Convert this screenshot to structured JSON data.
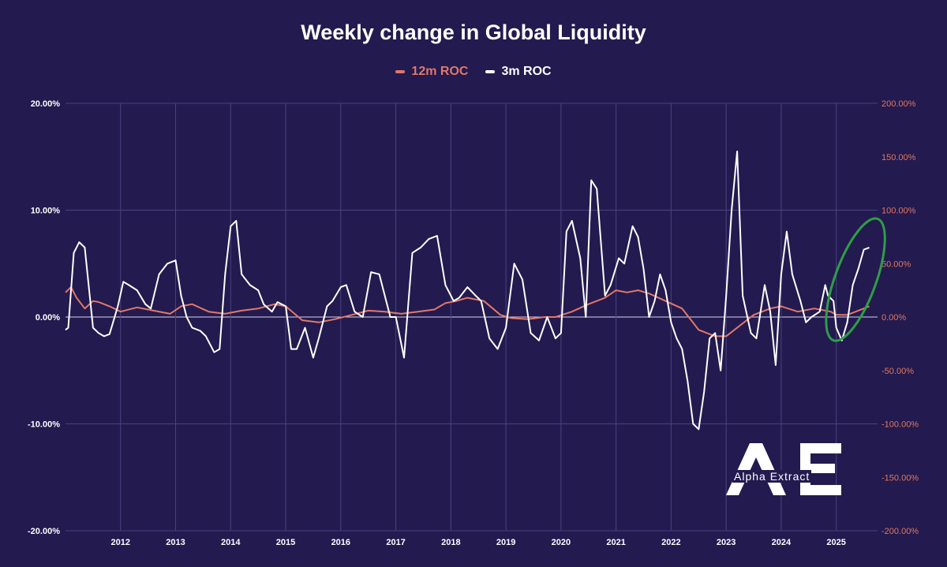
{
  "chart_data": {
    "type": "line",
    "title": "Weekly change in Global Liquidity",
    "colors": {
      "background": "#231a4f",
      "roc_12m": "#e0786a",
      "roc_3m": "#ffffff",
      "gridline": "#4a4380",
      "highlight_ellipse": "#2e9e46",
      "right_axis_text": "#e0785e"
    },
    "y_left": {
      "ylim": [
        -0.2,
        0.2
      ],
      "ticks": [
        0.2,
        0.1,
        0.0,
        -0.1,
        -0.2
      ],
      "tick_labels": [
        "20.00%",
        "10.00%",
        "0.00%",
        "-10.00%",
        "-20.00%"
      ]
    },
    "y_right": {
      "ylim": [
        -2.0,
        2.0
      ],
      "ticks": [
        2.0,
        1.5,
        1.0,
        0.5,
        0.0,
        -0.5,
        -1.0,
        -1.5,
        -2.0
      ],
      "tick_labels": [
        "200.00%",
        "150.00%",
        "100.00%",
        "50.00%",
        "0.00%",
        "-50.00%",
        "-100.00%",
        "-150.00%",
        "-200.00%"
      ]
    },
    "x": {
      "xlim": [
        2011.0,
        2025.75
      ],
      "ticks": [
        2012,
        2013,
        2014,
        2015,
        2016,
        2017,
        2018,
        2019,
        2020,
        2021,
        2022,
        2023,
        2024,
        2025
      ],
      "tick_labels": [
        "2012",
        "2013",
        "2014",
        "2015",
        "2016",
        "2017",
        "2018",
        "2019",
        "2020",
        "2021",
        "2022",
        "2023",
        "2024",
        "2025"
      ]
    },
    "grid": true,
    "legend_position": "top-center",
    "series": [
      {
        "name": "12m ROC",
        "axis": "right",
        "color": "#e0786a",
        "x": [
          2011.0,
          2011.1,
          2011.2,
          2011.35,
          2011.5,
          2011.6,
          2011.8,
          2012.0,
          2012.3,
          2012.6,
          2012.9,
          2013.1,
          2013.3,
          2013.6,
          2013.9,
          2014.2,
          2014.5,
          2014.8,
          2015.0,
          2015.3,
          2015.6,
          2015.9,
          2016.2,
          2016.5,
          2016.8,
          2017.1,
          2017.4,
          2017.7,
          2017.9,
          2018.1,
          2018.3,
          2018.6,
          2018.9,
          2019.1,
          2019.4,
          2019.7,
          2019.9,
          2020.2,
          2020.5,
          2020.8,
          2021.0,
          2021.2,
          2021.4,
          2021.6,
          2021.9,
          2022.2,
          2022.5,
          2022.8,
          2023.0,
          2023.2,
          2023.5,
          2023.8,
          2024.0,
          2024.3,
          2024.6,
          2024.9,
          2025.0,
          2025.2,
          2025.5,
          2025.6
        ],
        "values": [
          0.23,
          0.28,
          0.18,
          0.08,
          0.15,
          0.14,
          0.1,
          0.05,
          0.09,
          0.06,
          0.03,
          0.1,
          0.12,
          0.05,
          0.03,
          0.06,
          0.08,
          0.12,
          0.1,
          -0.03,
          -0.05,
          -0.02,
          0.02,
          0.06,
          0.05,
          0.03,
          0.05,
          0.07,
          0.13,
          0.15,
          0.18,
          0.15,
          0.02,
          -0.01,
          -0.02,
          0.0,
          0.0,
          0.05,
          0.12,
          0.18,
          0.25,
          0.23,
          0.25,
          0.22,
          0.15,
          0.08,
          -0.12,
          -0.18,
          -0.18,
          -0.1,
          0.02,
          0.08,
          0.1,
          0.05,
          0.08,
          0.05,
          0.02,
          0.02,
          0.08,
          0.1
        ]
      },
      {
        "name": "3m ROC",
        "axis": "left",
        "color": "#ffffff",
        "x": [
          2011.0,
          2011.05,
          2011.15,
          2011.25,
          2011.35,
          2011.5,
          2011.6,
          2011.7,
          2011.8,
          2011.95,
          2012.05,
          2012.15,
          2012.3,
          2012.45,
          2012.55,
          2012.7,
          2012.85,
          2013.0,
          2013.1,
          2013.2,
          2013.3,
          2013.45,
          2013.55,
          2013.7,
          2013.8,
          2013.9,
          2014.0,
          2014.1,
          2014.2,
          2014.35,
          2014.5,
          2014.6,
          2014.75,
          2014.85,
          2015.0,
          2015.1,
          2015.2,
          2015.35,
          2015.5,
          2015.6,
          2015.75,
          2015.85,
          2016.0,
          2016.1,
          2016.25,
          2016.4,
          2016.55,
          2016.7,
          2016.8,
          2016.9,
          2017.0,
          2017.15,
          2017.3,
          2017.45,
          2017.6,
          2017.75,
          2017.9,
          2018.05,
          2018.15,
          2018.3,
          2018.45,
          2018.55,
          2018.7,
          2018.85,
          2019.0,
          2019.15,
          2019.3,
          2019.45,
          2019.6,
          2019.75,
          2019.9,
          2020.0,
          2020.1,
          2020.2,
          2020.35,
          2020.45,
          2020.55,
          2020.65,
          2020.8,
          2020.9,
          2021.05,
          2021.15,
          2021.3,
          2021.4,
          2021.5,
          2021.6,
          2021.7,
          2021.8,
          2021.9,
          2022.0,
          2022.1,
          2022.2,
          2022.3,
          2022.4,
          2022.5,
          2022.6,
          2022.7,
          2022.8,
          2022.9,
          2023.0,
          2023.1,
          2023.2,
          2023.3,
          2023.45,
          2023.55,
          2023.7,
          2023.8,
          2023.9,
          2024.0,
          2024.1,
          2024.2,
          2024.35,
          2024.45,
          2024.55,
          2024.7,
          2024.8,
          2024.85,
          2024.95,
          2025.0,
          2025.1,
          2025.2,
          2025.3,
          2025.4,
          2025.5,
          2025.6
        ],
        "values": [
          -0.012,
          -0.01,
          0.06,
          0.07,
          0.065,
          -0.01,
          -0.015,
          -0.018,
          -0.016,
          0.01,
          0.033,
          0.03,
          0.025,
          0.012,
          0.008,
          0.04,
          0.05,
          0.053,
          0.02,
          0.0,
          -0.01,
          -0.013,
          -0.018,
          -0.033,
          -0.03,
          0.04,
          0.085,
          0.09,
          0.04,
          0.03,
          0.025,
          0.012,
          0.005,
          0.014,
          0.01,
          -0.03,
          -0.03,
          -0.01,
          -0.038,
          -0.02,
          0.01,
          0.015,
          0.028,
          0.03,
          0.005,
          0.0,
          0.042,
          0.04,
          0.02,
          0.0,
          0.0,
          -0.038,
          0.06,
          0.065,
          0.073,
          0.076,
          0.03,
          0.015,
          0.018,
          0.028,
          0.02,
          0.015,
          -0.02,
          -0.03,
          -0.01,
          0.05,
          0.035,
          -0.015,
          -0.022,
          0.0,
          -0.02,
          -0.015,
          0.08,
          0.09,
          0.055,
          0.0,
          0.128,
          0.12,
          0.02,
          0.03,
          0.055,
          0.05,
          0.085,
          0.075,
          0.045,
          0.0,
          0.015,
          0.04,
          0.025,
          -0.005,
          -0.02,
          -0.03,
          -0.06,
          -0.1,
          -0.105,
          -0.07,
          -0.02,
          -0.015,
          -0.05,
          0.02,
          0.1,
          0.155,
          0.02,
          -0.015,
          -0.02,
          0.03,
          0.005,
          -0.045,
          0.04,
          0.08,
          0.04,
          0.015,
          -0.005,
          0.0,
          0.005,
          0.03,
          0.02,
          0.015,
          -0.01,
          -0.022,
          -0.005,
          0.03,
          0.045,
          0.063,
          0.065
        ]
      }
    ]
  },
  "logo": {
    "name": "alpha-extract-logo",
    "text": "Alpha Extract"
  }
}
